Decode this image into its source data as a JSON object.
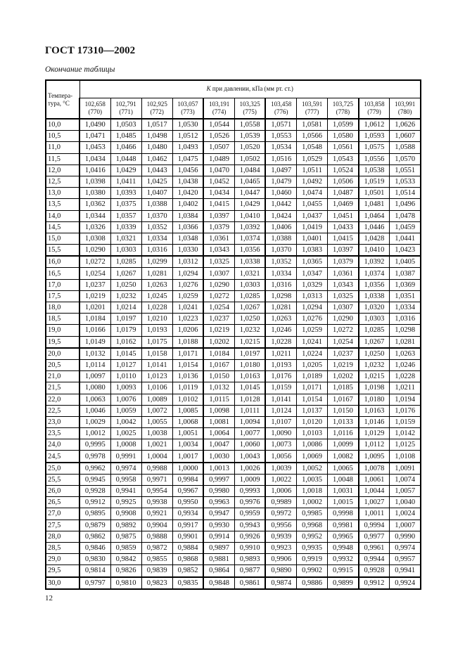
{
  "header": {
    "doc_title": "ГОСТ 17310—2002",
    "caption": "Окончание таблицы"
  },
  "table": {
    "temp_header": "Темпера-тура, °C",
    "group_header_symbol": "K",
    "group_header_text": " при давлении, кПа (мм рт. ст.)",
    "columns": [
      {
        "kpa": "102,658",
        "mmhg": "(770)"
      },
      {
        "kpa": "102,791",
        "mmhg": "(771)"
      },
      {
        "kpa": "102,925",
        "mmhg": "(772)"
      },
      {
        "kpa": "103,057",
        "mmhg": "(773)"
      },
      {
        "kpa": "103,191",
        "mmhg": "(774)"
      },
      {
        "kpa": "103,325",
        "mmhg": "(775)"
      },
      {
        "kpa": "103,458",
        "mmhg": "(776)"
      },
      {
        "kpa": "103,591",
        "mmhg": "(777)"
      },
      {
        "kpa": "103,725",
        "mmhg": "(778)"
      },
      {
        "kpa": "103,858",
        "mmhg": "(779)"
      },
      {
        "kpa": "103,991",
        "mmhg": "(780)"
      }
    ],
    "rows": [
      [
        "10,0",
        "1,0490",
        "1,0503",
        "1,0517",
        "1,0530",
        "1,0544",
        "1,0558",
        "1,0571",
        "1,0581",
        "1,0599",
        "1,0612",
        "1,0626"
      ],
      [
        "10,5",
        "1,0471",
        "1,0485",
        "1,0498",
        "1,0512",
        "1,0526",
        "1,0539",
        "1,0553",
        "1,0566",
        "1,0580",
        "1,0593",
        "1,0607"
      ],
      [
        "11,0",
        "1,0453",
        "1,0466",
        "1,0480",
        "1,0493",
        "1,0507",
        "1,0520",
        "1,0534",
        "1,0548",
        "1,0561",
        "1,0575",
        "1,0588"
      ],
      [
        "11,5",
        "1,0434",
        "1,0448",
        "1,0462",
        "1,0475",
        "1,0489",
        "1,0502",
        "1,0516",
        "1,0529",
        "1,0543",
        "1,0556",
        "1,0570"
      ],
      [
        "12,0",
        "1,0416",
        "1,0429",
        "1,0443",
        "1,0456",
        "1,0470",
        "1,0484",
        "1,0497",
        "1,0511",
        "1,0524",
        "1,0538",
        "1,0551"
      ],
      [
        "12,5",
        "1,0398",
        "1,0411",
        "1,0425",
        "1,0438",
        "1,0452",
        "1,0465",
        "1,0479",
        "1,0492",
        "1,0506",
        "1,0519",
        "1,0533"
      ],
      [
        "13,0",
        "1,0380",
        "1,0393",
        "1,0407",
        "1,0420",
        "1,0434",
        "1,0447",
        "1,0460",
        "1,0474",
        "1,0487",
        "1,0501",
        "1,0514"
      ],
      [
        "13,5",
        "1,0362",
        "1,0375",
        "1,0388",
        "1,0402",
        "1,0415",
        "1,0429",
        "1,0442",
        "1,0455",
        "1,0469",
        "1,0481",
        "1,0496"
      ],
      [
        "14,0",
        "1,0344",
        "1,0357",
        "1,0370",
        "1,0384",
        "1,0397",
        "1,0410",
        "1,0424",
        "1,0437",
        "1,0451",
        "1,0464",
        "1,0478"
      ],
      [
        "14,5",
        "1,0326",
        "1,0339",
        "1,0352",
        "1,0366",
        "1,0379",
        "1,0392",
        "1,0406",
        "1,0419",
        "1,0433",
        "1,0446",
        "1,0459"
      ],
      [
        "15,0",
        "1,0308",
        "1,0321",
        "1,0334",
        "1,0348",
        "1,0361",
        "1,0374",
        "1,0388",
        "1,0401",
        "1,0415",
        "1,0428",
        "1,0441"
      ],
      [
        "15,5",
        "1,0290",
        "1,0303",
        "1,0316",
        "1,0330",
        "1,0343",
        "1,0356",
        "1,0370",
        "1,0383",
        "1,0397",
        "1,0410",
        "1,0423"
      ],
      [
        "16,0",
        "1,0272",
        "1,0285",
        "1,0299",
        "1,0312",
        "1,0325",
        "1,0338",
        "1,0352",
        "1,0365",
        "1,0379",
        "1,0392",
        "1,0405"
      ],
      [
        "16,5",
        "1,0254",
        "1,0267",
        "1,0281",
        "1,0294",
        "1,0307",
        "1,0321",
        "1,0334",
        "1,0347",
        "1,0361",
        "1,0374",
        "1,0387"
      ],
      [
        "17,0",
        "1,0237",
        "1,0250",
        "1,0263",
        "1,0276",
        "1,0290",
        "1,0303",
        "1,0316",
        "1,0329",
        "1,0343",
        "1,0356",
        "1,0369"
      ],
      [
        "17,5",
        "1,0219",
        "1,0232",
        "1,0245",
        "1,0259",
        "1,0272",
        "1,0285",
        "1,0298",
        "1,0313",
        "1,0325",
        "1,0338",
        "1,0351"
      ],
      [
        "18,0",
        "1,0201",
        "1,0214",
        "1,0228",
        "1,0241",
        "1,0254",
        "1,0267",
        "1,0281",
        "1,0294",
        "1,0307",
        "1,0320",
        "1,0334"
      ],
      [
        "18,5",
        "1,0184",
        "1,0197",
        "1,0210",
        "1,0223",
        "1,0237",
        "1,0250",
        "1,0263",
        "1,0276",
        "1,0290",
        "1,0303",
        "1,0316"
      ],
      [
        "19,0",
        "1,0166",
        "1,0179",
        "1,0193",
        "1,0206",
        "1,0219",
        "1,0232",
        "1,0246",
        "1,0259",
        "1,0272",
        "1,0285",
        "1,0298"
      ],
      [
        "19,5",
        "1,0149",
        "1,0162",
        "1,0175",
        "1,0188",
        "1,0202",
        "1,0215",
        "1,0228",
        "1,0241",
        "1,0254",
        "1,0267",
        "1,0281"
      ],
      [
        "20,0",
        "1,0132",
        "1,0145",
        "1,0158",
        "1,0171",
        "1,0184",
        "1,0197",
        "1,0211",
        "1,0224",
        "1,0237",
        "1,0250",
        "1,0263"
      ],
      [
        "20,5",
        "1,0114",
        "1,0127",
        "1,0141",
        "1,0154",
        "1,0167",
        "1,0180",
        "1,0193",
        "1,0205",
        "1,0219",
        "1,0232",
        "1,0246"
      ],
      [
        "21,0",
        "1,0097",
        "1,0110",
        "1,0123",
        "1,0136",
        "1,0150",
        "1,0163",
        "1,0176",
        "1,0189",
        "1,0202",
        "1,0215",
        "1,0228"
      ],
      [
        "21,5",
        "1,0080",
        "1,0093",
        "1,0106",
        "1,0119",
        "1,0132",
        "1,0145",
        "1,0159",
        "1,0171",
        "1,0185",
        "1,0198",
        "1,0211"
      ],
      [
        "22,0",
        "1,0063",
        "1,0076",
        "1,0089",
        "1,0102",
        "1,0115",
        "1,0128",
        "1,0141",
        "1,0154",
        "1,0167",
        "1,0180",
        "1,0194"
      ],
      [
        "22,5",
        "1,0046",
        "1,0059",
        "1,0072",
        "1,0085",
        "1,0098",
        "1,0111",
        "1,0124",
        "1,0137",
        "1,0150",
        "1,0163",
        "1,0176"
      ],
      [
        "23,0",
        "1,0029",
        "1,0042",
        "1,0055",
        "1,0068",
        "1,0081",
        "1,0094",
        "1,0107",
        "1,0120",
        "1,0133",
        "1,0146",
        "1,0159"
      ],
      [
        "23,5",
        "1,0012",
        "1,0025",
        "1,0038",
        "1,0051",
        "1,0064",
        "1,0077",
        "1,0090",
        "1,0103",
        "1,0116",
        "1,0129",
        "1,0142"
      ],
      [
        "24,0",
        "0,9995",
        "1,0008",
        "1,0021",
        "1,0034",
        "1,0047",
        "1,0060",
        "1,0073",
        "1,0086",
        "1,0099",
        "1,0112",
        "1,0125"
      ],
      [
        "24,5",
        "0,9978",
        "0,9991",
        "1,0004",
        "1,0017",
        "1,0030",
        "1,0043",
        "1,0056",
        "1,0069",
        "1,0082",
        "1,0095",
        "1,0108"
      ],
      [
        "25,0",
        "0,9962",
        "0,9974",
        "0,9988",
        "1,0000",
        "1,0013",
        "1,0026",
        "1,0039",
        "1,0052",
        "1,0065",
        "1,0078",
        "1,0091"
      ],
      [
        "25,5",
        "0,9945",
        "0,9958",
        "0,9971",
        "0,9984",
        "0,9997",
        "1,0009",
        "1,0022",
        "1,0035",
        "1,0048",
        "1,0061",
        "1,0074"
      ],
      [
        "26,0",
        "0,9928",
        "0,9941",
        "0,9954",
        "0,9967",
        "0,9980",
        "0,9993",
        "1,0006",
        "1,0018",
        "1,0031",
        "1,0044",
        "1,0057"
      ],
      [
        "26,5",
        "0,9912",
        "0,9925",
        "0,9938",
        "0,9950",
        "0,9963",
        "0,9976",
        "0,9989",
        "1,0002",
        "1,0015",
        "1,0027",
        "1,0040"
      ],
      [
        "27,0",
        "0,9895",
        "0,9908",
        "0,9921",
        "0,9934",
        "0,9947",
        "0,9959",
        "0,9972",
        "0,9985",
        "0,9998",
        "1,0011",
        "1,0024"
      ],
      [
        "27,5",
        "0,9879",
        "0,9892",
        "0,9904",
        "0,9917",
        "0,9930",
        "0,9943",
        "0,9956",
        "0,9968",
        "0,9981",
        "0,9994",
        "1,0007"
      ],
      [
        "28,0",
        "0,9862",
        "0,9875",
        "0,9888",
        "0,9901",
        "0,9914",
        "0,9926",
        "0,9939",
        "0,9952",
        "0,9965",
        "0,9977",
        "0,9990"
      ],
      [
        "28,5",
        "0,9846",
        "0,9859",
        "0,9872",
        "0,9884",
        "0,9897",
        "0,9910",
        "0,9923",
        "0,9935",
        "0,9948",
        "0,9961",
        "0,9974"
      ],
      [
        "29,0",
        "0,9830",
        "0,9842",
        "0,9855",
        "0,9868",
        "0,9881",
        "0,9893",
        "0,9906",
        "0,9919",
        "0,9932",
        "0,9944",
        "0,9957"
      ],
      [
        "29,5",
        "0,9814",
        "0,9826",
        "0,9839",
        "0,9852",
        "0,9864",
        "0,9877",
        "0,9890",
        "0,9902",
        "0,9915",
        "0,9928",
        "0,9941"
      ],
      [
        "30,0",
        "0,9797",
        "0,9810",
        "0,9823",
        "0,9835",
        "0,9848",
        "0,9861",
        "0,9874",
        "0,9886",
        "0,9899",
        "0,9912",
        "0,9924"
      ]
    ]
  },
  "footer": {
    "page_number": "12"
  }
}
